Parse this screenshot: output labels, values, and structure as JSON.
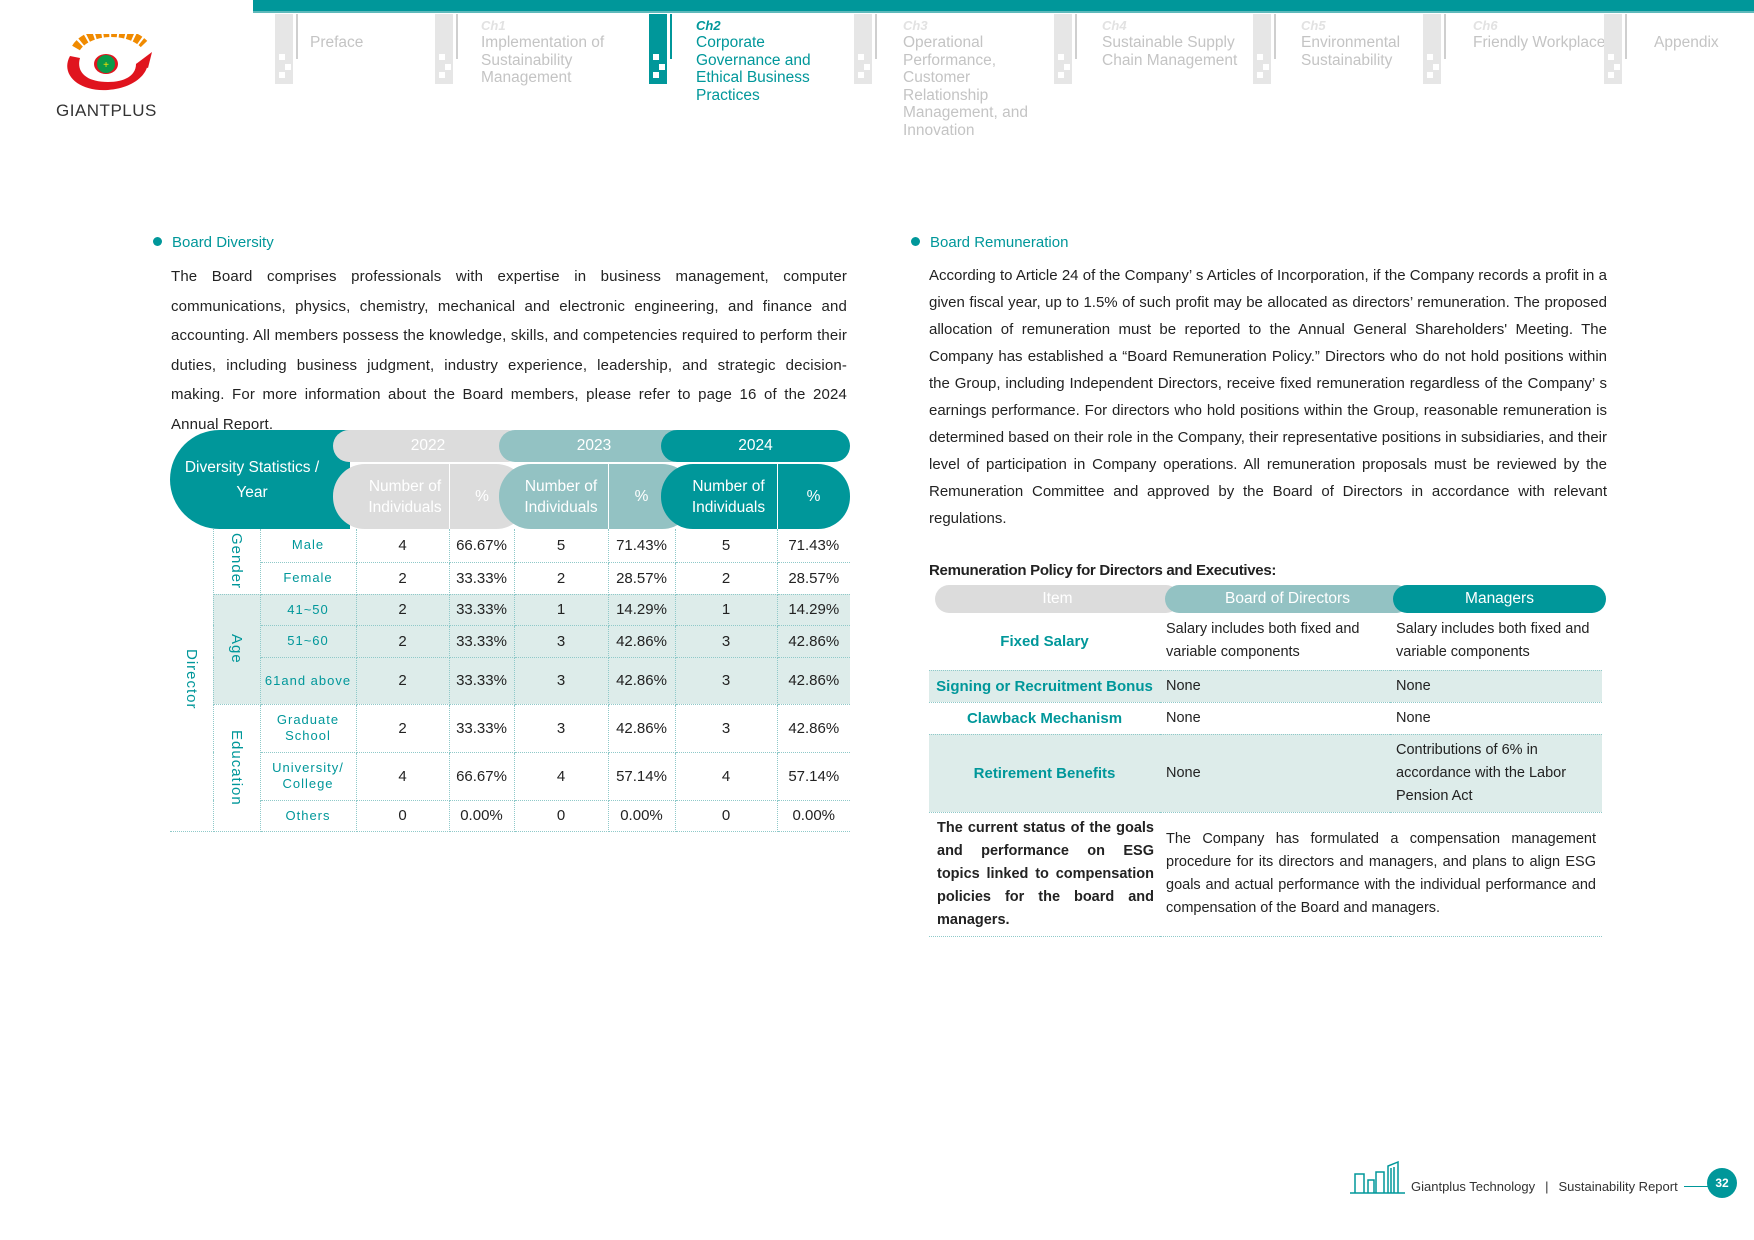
{
  "brand": {
    "logo_text": "GIANTPLUS",
    "accent": "#00979a"
  },
  "nav": [
    {
      "chapter": "",
      "label": "Preface"
    },
    {
      "chapter": "Ch1",
      "label": "Implementation of Sustainability Management"
    },
    {
      "chapter": "Ch2",
      "label": "Corporate Governance and Ethical Business Practices",
      "active": true
    },
    {
      "chapter": "Ch3",
      "label": "Operational Performance, Customer Relationship Management, and Innovation"
    },
    {
      "chapter": "Ch4",
      "label": "Sustainable Supply Chain Management"
    },
    {
      "chapter": "Ch5",
      "label": "Environmental Sustainability"
    },
    {
      "chapter": "Ch6",
      "label": "Friendly Workplace"
    },
    {
      "chapter": "",
      "label": "Appendix"
    }
  ],
  "left": {
    "title": "Board Diversity",
    "paragraph": "The Board comprises professionals with expertise in business management, computer communications, physics, chemistry, mechanical and electronic engineering, and finance and accounting. All members possess the knowledge, skills, and competencies required to perform their duties, including business judgment, industry experience, leadership, and strategic decision-making. For more information about the Board members, please refer to page 16 of the 2024 Annual Report.",
    "table": {
      "corner": "Diversity Statistics / Year",
      "years": [
        "2022",
        "2023",
        "2024"
      ],
      "sub_num": "Number of Individuals",
      "sub_pct": "%",
      "group": "Director",
      "categories": [
        "Gender",
        "Age",
        "Education"
      ],
      "rows": [
        {
          "label": "Male",
          "v": [
            "4",
            "66.67%",
            "5",
            "71.43%",
            "5",
            "71.43%"
          ]
        },
        {
          "label": "Female",
          "v": [
            "2",
            "33.33%",
            "2",
            "28.57%",
            "2",
            "28.57%"
          ]
        },
        {
          "label": "41~50",
          "v": [
            "2",
            "33.33%",
            "1",
            "14.29%",
            "1",
            "14.29%"
          ]
        },
        {
          "label": "51~60",
          "v": [
            "2",
            "33.33%",
            "3",
            "42.86%",
            "3",
            "42.86%"
          ]
        },
        {
          "label": "61and above",
          "v": [
            "2",
            "33.33%",
            "3",
            "42.86%",
            "3",
            "42.86%"
          ]
        },
        {
          "label": "Graduate School",
          "v": [
            "2",
            "33.33%",
            "3",
            "42.86%",
            "3",
            "42.86%"
          ]
        },
        {
          "label": "University/ College",
          "v": [
            "4",
            "66.67%",
            "4",
            "57.14%",
            "4",
            "57.14%"
          ]
        },
        {
          "label": "Others",
          "v": [
            "0",
            "0.00%",
            "0",
            "0.00%",
            "0",
            "0.00%"
          ]
        }
      ]
    }
  },
  "right": {
    "title": "Board Remuneration",
    "paragraph": "According to Article 24 of the Company’ s Articles of Incorporation, if the Company records a profit in a given fiscal year, up to 1.5% of such profit may be allocated as directors’  remuneration. The proposed allocation of remuneration must be reported to the Annual General Shareholders' Meeting. The Company has established a  “Board Remuneration Policy.”  Directors who do not hold positions within the Group, including Independent Directors, receive fixed remuneration regardless of the Company’ s earnings performance. For directors who hold positions within the Group, reasonable remuneration is determined based on their role in the Company, their representative positions in subsidiaries, and their level of participation in Company operations. All remuneration proposals must be reviewed by the Remuneration Committee and approved by the Board of Directors in accordance with relevant regulations.",
    "table_title": "Remuneration Policy for Directors and Executives:",
    "headers": [
      "Item",
      "Board of Directors",
      "Managers"
    ],
    "rows": [
      {
        "item": "Fixed Salary",
        "board": "Salary includes both fixed and variable components",
        "managers": "Salary includes both fixed and variable components"
      },
      {
        "item": "Signing or Recruitment Bonus",
        "board": "None",
        "managers": "None"
      },
      {
        "item": "Clawback Mechanism",
        "board": "None",
        "managers": "None"
      },
      {
        "item": "Retirement Benefits",
        "board": "None",
        "managers": "Contributions of 6% in accordance with the Labor Pension Act"
      }
    ],
    "last_row": {
      "item": "The current status of the goals and performance on ESG topics linked to compensation policies for the board and managers.",
      "text": "The Company has formulated a compensation management procedure for its directors and managers, and plans to align ESG goals and actual performance with the individual performance and compensation of the Board and managers."
    }
  },
  "footer": {
    "company": "Giantplus Technology",
    "separator": "|",
    "report": "Sustainability Report",
    "page": "32"
  }
}
